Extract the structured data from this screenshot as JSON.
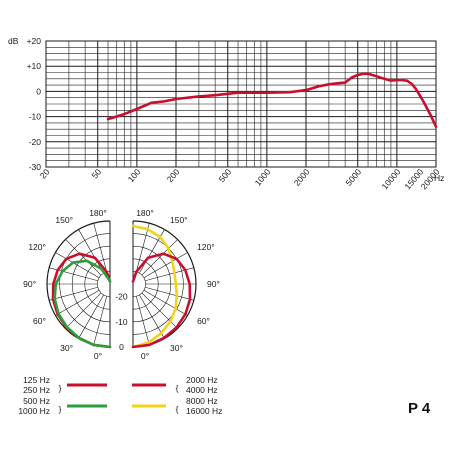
{
  "model_label": "P 4",
  "colors": {
    "red": "#c8102e",
    "green": "#2e9e3a",
    "yellow": "#f2d21a",
    "grid": "#1a1a1a"
  },
  "chart_data": [
    {
      "type": "line",
      "ylabel": "dB",
      "xunit": "Hz",
      "xscale": "log",
      "xlim": [
        20,
        20000
      ],
      "ylim": [
        -30,
        20
      ],
      "yticks": [
        {
          "v": 20,
          "label": "+20"
        },
        {
          "v": 10,
          "label": "+10"
        },
        {
          "v": 0,
          "label": "0"
        },
        {
          "v": -10,
          "label": "-10"
        },
        {
          "v": -20,
          "label": "-20"
        },
        {
          "v": -30,
          "label": "-30"
        }
      ],
      "xticks": [
        {
          "v": 20,
          "label": "20"
        },
        {
          "v": 50,
          "label": "50"
        },
        {
          "v": 100,
          "label": "100"
        },
        {
          "v": 200,
          "label": "200"
        },
        {
          "v": 500,
          "label": "500"
        },
        {
          "v": 1000,
          "label": "1000"
        },
        {
          "v": 2000,
          "label": "2000"
        },
        {
          "v": 5000,
          "label": "5000"
        },
        {
          "v": 10000,
          "label": "10000"
        },
        {
          "v": 15000,
          "label": "15000"
        },
        {
          "v": 20000,
          "label": "20000"
        }
      ],
      "series": [
        {
          "color": "#c8102e",
          "x": [
            60,
            80,
            100,
            130,
            160,
            200,
            300,
            400,
            600,
            1000,
            1500,
            2000,
            2500,
            3000,
            3500,
            4000,
            4500,
            5000,
            5500,
            6000,
            7000,
            8000,
            9000,
            10000,
            11000,
            12000,
            13000,
            14000,
            16000,
            18000,
            20000
          ],
          "y": [
            -11,
            -9,
            -7,
            -4.5,
            -4,
            -3,
            -2,
            -1.5,
            -0.5,
            -0.5,
            -0.3,
            0.5,
            2,
            2.8,
            3.2,
            3.5,
            5.5,
            6.5,
            7,
            7,
            6,
            5,
            4.3,
            4.5,
            4.5,
            4.2,
            3,
            1,
            -4,
            -9,
            -14
          ]
        }
      ]
    },
    {
      "type": "polar",
      "radial_ticks": [
        {
          "v": -20,
          "label": "-20"
        },
        {
          "v": -10,
          "label": "-10"
        },
        {
          "v": 0,
          "label": "0"
        }
      ],
      "rlim": [
        -25,
        0
      ],
      "angle_labels_left": [
        {
          "deg": 180,
          "label": "180°"
        },
        {
          "deg": 150,
          "label": "150°"
        },
        {
          "deg": 120,
          "label": "120°"
        },
        {
          "deg": 90,
          "label": "90°"
        },
        {
          "deg": 60,
          "label": "60°"
        },
        {
          "deg": 30,
          "label": "30°"
        },
        {
          "deg": 0,
          "label": "0°"
        }
      ],
      "angle_labels_right": [
        {
          "deg": 180,
          "label": "180°"
        },
        {
          "deg": 150,
          "label": "150°"
        },
        {
          "deg": 120,
          "label": "120°"
        },
        {
          "deg": 90,
          "label": "90°"
        },
        {
          "deg": 60,
          "label": "60°"
        },
        {
          "deg": 30,
          "label": "30°"
        },
        {
          "deg": 0,
          "label": "0°"
        }
      ],
      "series": [
        {
          "side": "left",
          "color": "#c8102e",
          "legend": "125 Hz / 250 Hz",
          "angles": [
            0,
            15,
            30,
            45,
            60,
            75,
            90,
            105,
            120,
            135,
            150,
            165,
            180
          ],
          "db": [
            0,
            0,
            -0.3,
            -0.6,
            -1,
            -1.6,
            -2.5,
            -3.5,
            -5,
            -8,
            -13,
            -20,
            -24
          ]
        },
        {
          "side": "left",
          "color": "#2e9e3a",
          "legend": "500 Hz / 1000 Hz",
          "angles": [
            0,
            15,
            30,
            45,
            60,
            75,
            90,
            105,
            120,
            135,
            150,
            165,
            180
          ],
          "db": [
            0,
            0,
            -0.3,
            -0.8,
            -1.4,
            -2.3,
            -3.5,
            -5.5,
            -8,
            -12,
            -18,
            -23,
            -24
          ]
        },
        {
          "side": "right",
          "color": "#f2d21a",
          "legend": "8000 Hz / 16000 Hz",
          "angles": [
            0,
            15,
            30,
            45,
            60,
            75,
            90,
            105,
            120,
            135,
            150,
            165,
            180
          ],
          "db": [
            0,
            -1,
            -2.5,
            -4,
            -5.5,
            -7,
            -8,
            -8,
            -7,
            -5,
            -3.5,
            -2.5,
            -2
          ]
        },
        {
          "side": "right",
          "color": "#c8102e",
          "legend": "2000 Hz / 4000 Hz",
          "angles": [
            0,
            15,
            30,
            45,
            60,
            75,
            90,
            105,
            120,
            135,
            150,
            165,
            180
          ],
          "db": [
            0,
            0,
            -0.3,
            -0.6,
            -1,
            -1.6,
            -2.5,
            -3.5,
            -5,
            -8,
            -13,
            -20,
            -24
          ]
        }
      ]
    }
  ],
  "legend": {
    "left": [
      {
        "line1": "125 Hz",
        "line2": "250 Hz",
        "color": "#c8102e"
      },
      {
        "line1": "500 Hz",
        "line2": "1000 Hz",
        "color": "#2e9e3a"
      }
    ],
    "right": [
      {
        "line1": "2000 Hz",
        "line2": "4000 Hz",
        "color": "#c8102e"
      },
      {
        "line1": "8000 Hz",
        "line2": "16000 Hz",
        "color": "#f2d21a"
      }
    ]
  }
}
